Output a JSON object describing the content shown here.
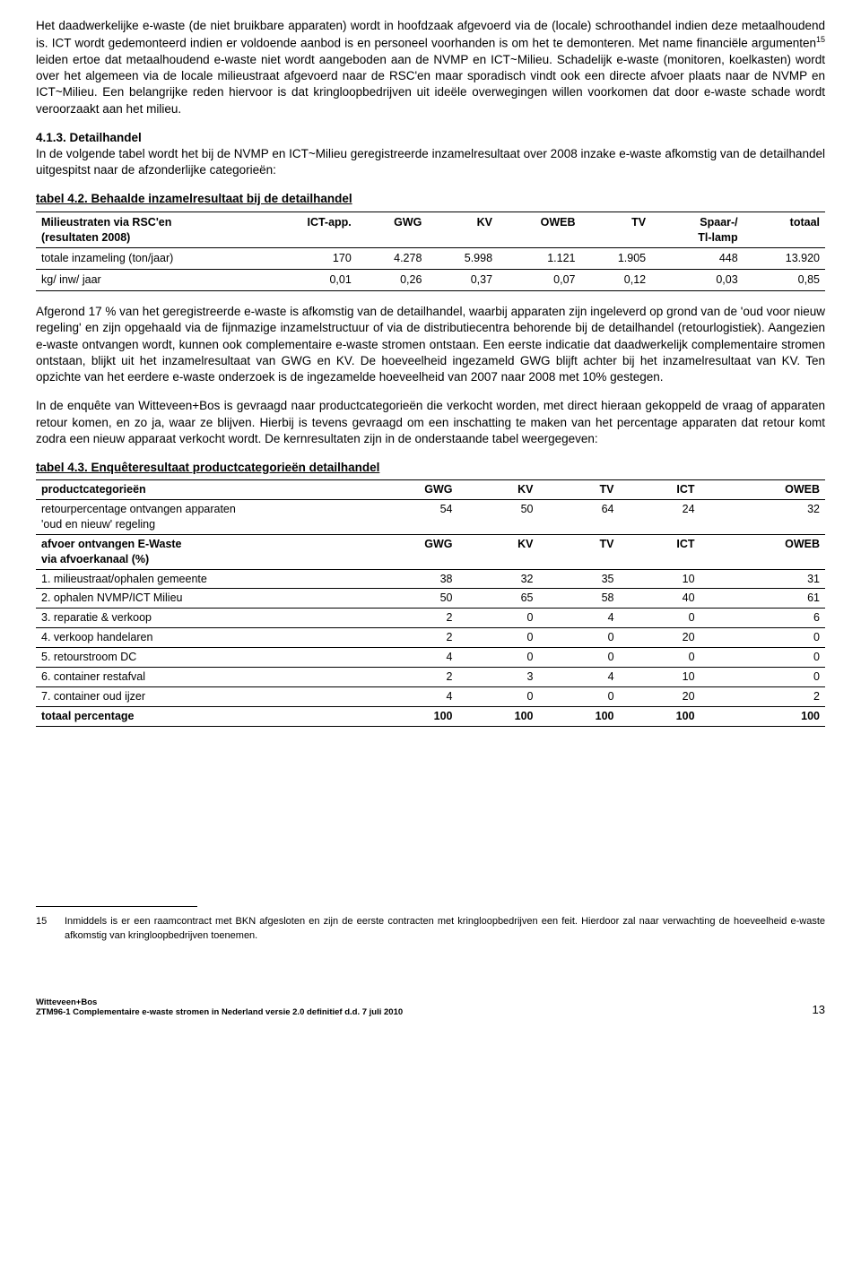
{
  "paragraphs": {
    "p1a": "Het daadwerkelijke e-waste (de niet bruikbare apparaten) wordt in hoofdzaak afgevoerd via de (locale) schroothandel indien deze metaalhoudend is. ICT wordt gedemonteerd indien er voldoende aanbod is en personeel voorhanden is om het te demonteren. Met name financiële argumenten",
    "p1_sup": "15",
    "p1b": " leiden ertoe dat metaalhoudend e-waste niet wordt aangeboden aan de NVMP en ICT~Milieu. Schadelijk e-waste (monitoren, koelkasten) wordt over het algemeen via de locale milieustraat afgevoerd naar de RSC'en maar sporadisch vindt ook een directe afvoer plaats naar de NVMP en ICT~Milieu. Een belangrijke reden hiervoor is dat kringloopbedrijven uit ideële overwegingen willen voorkomen dat door e-waste schade wordt veroorzaakt aan het milieu.",
    "heading413": "4.1.3. Detailhandel",
    "p2": "In de volgende tabel wordt het bij de NVMP en ICT~Milieu geregistreerde inzamelresultaat over 2008 inzake e-waste afkomstig van de detailhandel uitgespitst naar de afzonderlijke categorieën:",
    "tbl42_title": "tabel 4.2. Behaalde inzamelresultaat bij de detailhandel",
    "p3": "Afgerond 17 % van het geregistreerde e-waste is afkomstig van de detailhandel, waarbij apparaten zijn ingeleverd op grond van de 'oud voor nieuw regeling' en zijn opgehaald via de fijnmazige inzamelstructuur of via de distributiecentra behorende bij de detailhandel (retourlogistiek). Aangezien e-waste ontvangen wordt, kunnen ook complementaire e-waste stromen ontstaan. Een eerste indicatie dat daadwerkelijk complementaire stromen ontstaan, blijkt uit het inzamelresultaat van GWG en KV. De hoeveelheid ingezameld GWG blijft achter bij het inzamelresultaat van KV. Ten opzichte van het eerdere e-waste onderzoek is de ingezamelde hoeveelheid van 2007 naar 2008 met 10% gestegen.",
    "p4": "In de enquête van Witteveen+Bos is gevraagd naar productcategorieën die verkocht worden, met direct hieraan gekoppeld de vraag of apparaten retour komen, en zo ja, waar ze blijven. Hierbij is tevens gevraagd om een inschatting te maken van het percentage apparaten dat retour komt zodra een nieuw apparaat verkocht wordt. De kernresultaten zijn in de onderstaande tabel weergegeven:",
    "tbl43_title": "tabel 4.3. Enquêteresultaat productcategorieën detailhandel"
  },
  "table42": {
    "col0a": "Milieustraten via RSC'en",
    "col0b": "(resultaten 2008)",
    "cols": [
      "ICT-app.",
      "GWG",
      "KV",
      "OWEB",
      "TV",
      "Spaar-/",
      "totaal"
    ],
    "col5b": "Tl-lamp",
    "rows": [
      {
        "label": "totale inzameling (ton/jaar)",
        "vals": [
          "170",
          "4.278",
          "5.998",
          "1.121",
          "1.905",
          "448",
          "13.920"
        ]
      },
      {
        "label": "kg/ inw/ jaar",
        "vals": [
          "0,01",
          "0,26",
          "0,37",
          "0,07",
          "0,12",
          "0,03",
          "0,85"
        ]
      }
    ]
  },
  "table43": {
    "head_col0": "productcategorieën",
    "head_cols": [
      "GWG",
      "KV",
      "TV",
      "ICT",
      "OWEB"
    ],
    "row_retour_a": "retourpercentage ontvangen apparaten",
    "row_retour_b": "'oud en nieuw' regeling",
    "row_retour_vals": [
      "54",
      "50",
      "64",
      "24",
      "32"
    ],
    "row_afvoer_a": "afvoer ontvangen E-Waste",
    "row_afvoer_b": "via afvoerkanaal (%)",
    "row_afvoer_cols": [
      "GWG",
      "KV",
      "TV",
      "ICT",
      "OWEB"
    ],
    "rows": [
      {
        "label": "1. milieustraat/ophalen gemeente",
        "vals": [
          "38",
          "32",
          "35",
          "10",
          "31"
        ]
      },
      {
        "label": "2. ophalen NVMP/ICT Milieu",
        "vals": [
          "50",
          "65",
          "58",
          "40",
          "61"
        ]
      },
      {
        "label": "3. reparatie & verkoop",
        "vals": [
          "2",
          "0",
          "4",
          "0",
          "6"
        ]
      },
      {
        "label": "4. verkoop handelaren",
        "vals": [
          "2",
          "0",
          "0",
          "20",
          "0"
        ]
      },
      {
        "label": "5. retourstroom DC",
        "vals": [
          "4",
          "0",
          "0",
          "0",
          "0"
        ]
      },
      {
        "label": "6. container restafval",
        "vals": [
          "2",
          "3",
          "4",
          "10",
          "0"
        ]
      },
      {
        "label": "7. container oud ijzer",
        "vals": [
          "4",
          "0",
          "0",
          "20",
          "2"
        ]
      }
    ],
    "total_label": "totaal percentage",
    "total_vals": [
      "100",
      "100",
      "100",
      "100",
      "100"
    ]
  },
  "footnote": {
    "num": "15",
    "text": "Inmiddels is er een raamcontract met BKN afgesloten en zijn de eerste contracten met kringloopbedrijven een feit. Hierdoor zal naar verwachting de hoeveelheid e-waste afkomstig van kringloopbedrijven toenemen."
  },
  "footer": {
    "line1": "Witteveen+Bos",
    "line2": "ZTM96-1 Complementaire e-waste stromen in Nederland versie 2.0 definitief d.d. 7 juli 2010",
    "page": "13"
  }
}
